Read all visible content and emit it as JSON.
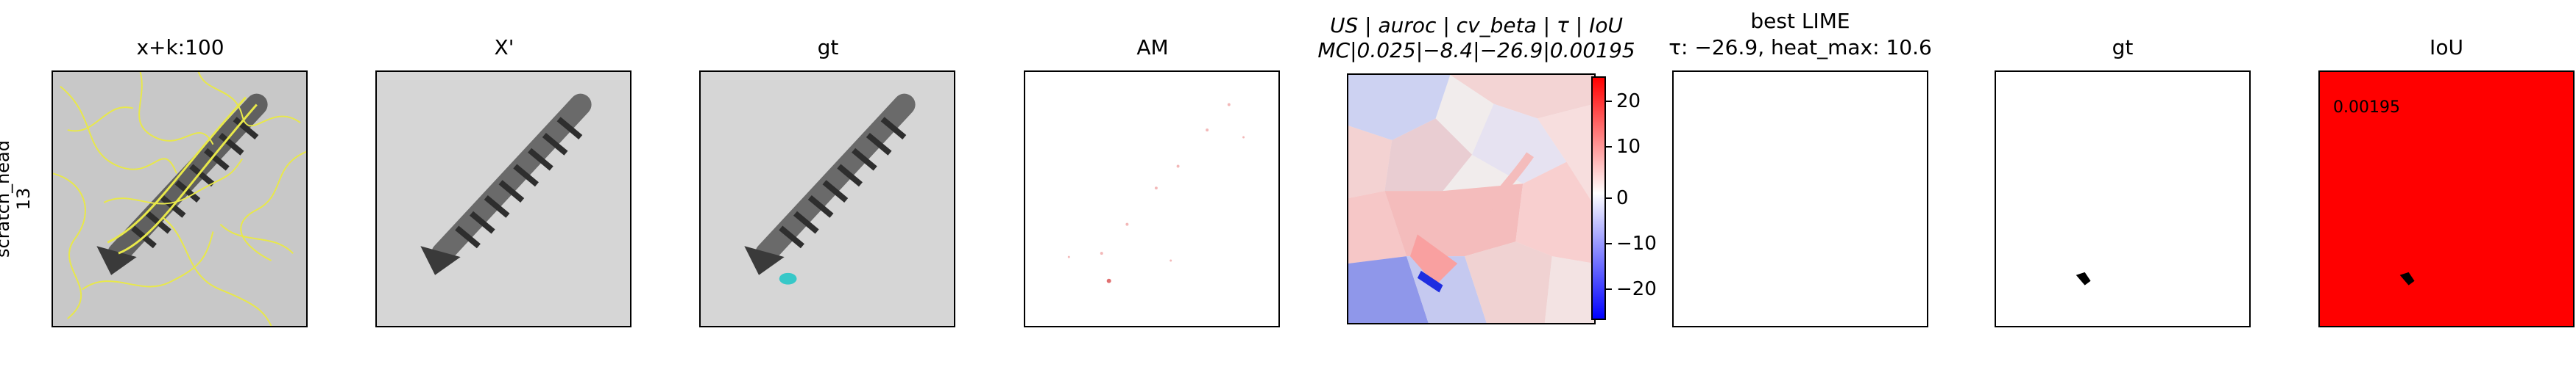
{
  "row_label": {
    "line1": "scratch_head",
    "line2": "13"
  },
  "panels": [
    {
      "title": "x+k:100"
    },
    {
      "title": "X'"
    },
    {
      "title": "gt"
    },
    {
      "title": "AM"
    },
    {
      "title_line1": "US | auroc | cv_beta | τ | IoU",
      "title_line2": "MC|0.025|−8.4|−26.9|0.00195"
    },
    {
      "title_line1": "best LIME",
      "title_line2": "τ: −26.9, heat_max: 10.6"
    },
    {
      "title": "gt"
    },
    {
      "title": "IoU",
      "value_text": "0.00195"
    }
  ],
  "colorbar": {
    "ticks": [
      "20",
      "10",
      "0",
      "−10",
      "−20"
    ],
    "values": [
      20,
      10,
      0,
      -10,
      -20
    ],
    "range": [
      -27,
      27
    ],
    "colors": {
      "max": "#ff0000",
      "mid": "#ffffff",
      "min": "#0000ff"
    }
  },
  "colors": {
    "iou_background": "#ff0000",
    "contour": "#e8e84a",
    "highlight": "#37c8c8"
  }
}
